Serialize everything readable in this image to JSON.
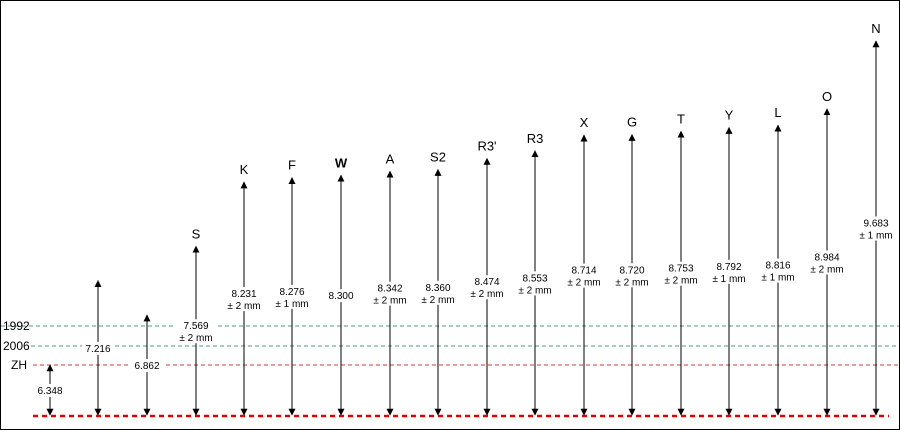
{
  "reference_lines": [
    {
      "label": "1992",
      "color": "#4f9a8a",
      "style": "dashed"
    },
    {
      "label": "2006",
      "color": "#4f9a8a",
      "style": "dashed"
    },
    {
      "label": "ZH",
      "color": "#d23a3a",
      "style": "dashed"
    }
  ],
  "baseline": {
    "color": "#e00000",
    "style": "dashed"
  },
  "columns": [
    {
      "label": "",
      "value": "6.348",
      "tolerance": ""
    },
    {
      "label": "",
      "value": "7.216",
      "tolerance": ""
    },
    {
      "label": "",
      "value": "6.862",
      "tolerance": ""
    },
    {
      "label": "S",
      "value": "7.569",
      "tolerance": "± 2 mm"
    },
    {
      "label": "K",
      "value": "8.231",
      "tolerance": "± 2 mm"
    },
    {
      "label": "F",
      "value": "8.276",
      "tolerance": "± 1 mm"
    },
    {
      "label": "W",
      "value": "8.300",
      "tolerance": "",
      "bold": true
    },
    {
      "label": "A",
      "value": "8.342",
      "tolerance": "± 2 mm"
    },
    {
      "label": "S2",
      "value": "8.360",
      "tolerance": "± 2 mm"
    },
    {
      "label": "R3'",
      "value": "8.474",
      "tolerance": "± 2 mm"
    },
    {
      "label": "R3",
      "value": "8.553",
      "tolerance": "± 2 mm"
    },
    {
      "label": "X",
      "value": "8.714",
      "tolerance": "± 2 mm"
    },
    {
      "label": "G",
      "value": "8.720",
      "tolerance": "± 2 mm"
    },
    {
      "label": "T",
      "value": "8.753",
      "tolerance": "± 2 mm"
    },
    {
      "label": "Y",
      "value": "8.792",
      "tolerance": "± 1 mm"
    },
    {
      "label": "L",
      "value": "8.816",
      "tolerance": "± 1 mm"
    },
    {
      "label": "O",
      "value": "8.984",
      "tolerance": "± 2 mm"
    },
    {
      "label": "N",
      "value": "9.683",
      "tolerance": "± 1 mm"
    }
  ]
}
